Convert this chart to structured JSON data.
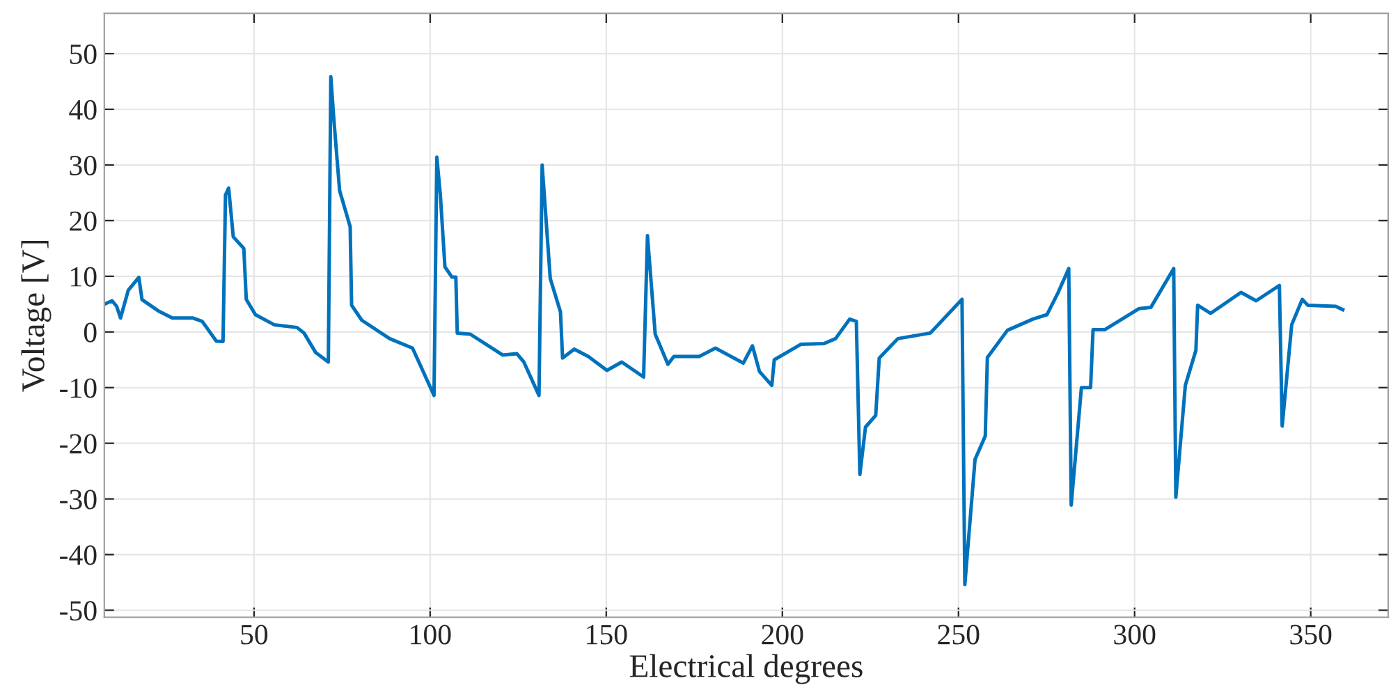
{
  "chart_data": {
    "type": "line",
    "xlabel": "Electrical degrees",
    "ylabel": "Voltage [V]",
    "xlim": [
      7.5,
      372
    ],
    "ylim": [
      -51.25,
      57.25
    ],
    "xticks": [
      50,
      100,
      150,
      200,
      250,
      300,
      350
    ],
    "yticks": [
      -50,
      -40,
      -30,
      -20,
      -10,
      0,
      10,
      20,
      30,
      40,
      50
    ],
    "grid": true,
    "series": [
      {
        "color": "#0072bd",
        "x": [
          7.6,
          9.7,
          11.0,
          12.1,
          14.3,
          17.3,
          18.2,
          22.8,
          26.8,
          32.7,
          35.3,
          39.3,
          41.2,
          41.9,
          42.8,
          44.1,
          47.1,
          47.8,
          50.4,
          55.7,
          62.2,
          64.2,
          67.5,
          71.1,
          71.8,
          72.7,
          74.3,
          77.3,
          77.7,
          80.6,
          88.5,
          95.0,
          101.1,
          101.9,
          102.9,
          104.2,
          106.2,
          107.3,
          107.7,
          111.4,
          120.6,
          124.6,
          126.6,
          130.9,
          131.8,
          134.1,
          137.0,
          137.6,
          140.9,
          144.9,
          150.2,
          154.4,
          160.6,
          161.7,
          163.9,
          167.5,
          169.2,
          176.4,
          181.0,
          188.9,
          191.5,
          193.5,
          197.0,
          197.7,
          205.3,
          211.8,
          215.1,
          219.1,
          221.0,
          222.0,
          223.6,
          226.5,
          227.5,
          232.8,
          242.0,
          251.0,
          251.8,
          254.7,
          257.6,
          258.2,
          263.9,
          271.1,
          275.1,
          278.3,
          281.3,
          282.0,
          284.9,
          287.5,
          288.2,
          291.5,
          301.3,
          304.6,
          311.1,
          311.7,
          314.4,
          317.4,
          317.9,
          321.6,
          330.2,
          334.5,
          341.1,
          341.9,
          344.6,
          347.6,
          349.2,
          357.1,
          359.1
        ],
        "values": [
          5.0,
          5.6,
          4.6,
          2.5,
          7.5,
          9.8,
          5.8,
          3.8,
          2.5,
          2.5,
          1.9,
          -1.65,
          -1.7,
          24.6,
          25.85,
          17.1,
          15.0,
          5.85,
          3.1,
          1.3,
          0.8,
          -0.2,
          -3.7,
          -5.4,
          45.85,
          37.9,
          25.4,
          18.9,
          4.8,
          2.1,
          -1.2,
          -2.9,
          -11.4,
          31.4,
          24.6,
          11.7,
          9.85,
          9.85,
          -0.2,
          -0.4,
          -4.15,
          -3.9,
          -5.4,
          -11.4,
          30.0,
          9.6,
          3.6,
          -4.7,
          -3.1,
          -4.4,
          -6.9,
          -5.4,
          -8.1,
          17.3,
          -0.4,
          -5.8,
          -4.4,
          -4.4,
          -2.9,
          -5.6,
          -2.5,
          -7.1,
          -9.6,
          -5.0,
          -2.2,
          -2.1,
          -1.2,
          2.3,
          1.9,
          -25.6,
          -17.1,
          -15.0,
          -4.7,
          -1.2,
          -0.2,
          5.85,
          -45.4,
          -22.9,
          -18.7,
          -4.6,
          0.3,
          2.3,
          3.1,
          7.1,
          11.4,
          -31.1,
          -10.0,
          -10.0,
          0.4,
          0.4,
          4.2,
          4.4,
          11.4,
          -29.7,
          -9.6,
          -3.3,
          4.8,
          3.35,
          7.1,
          5.6,
          8.35,
          -16.9,
          1.3,
          5.85,
          4.8,
          4.6,
          4.0
        ]
      }
    ]
  }
}
